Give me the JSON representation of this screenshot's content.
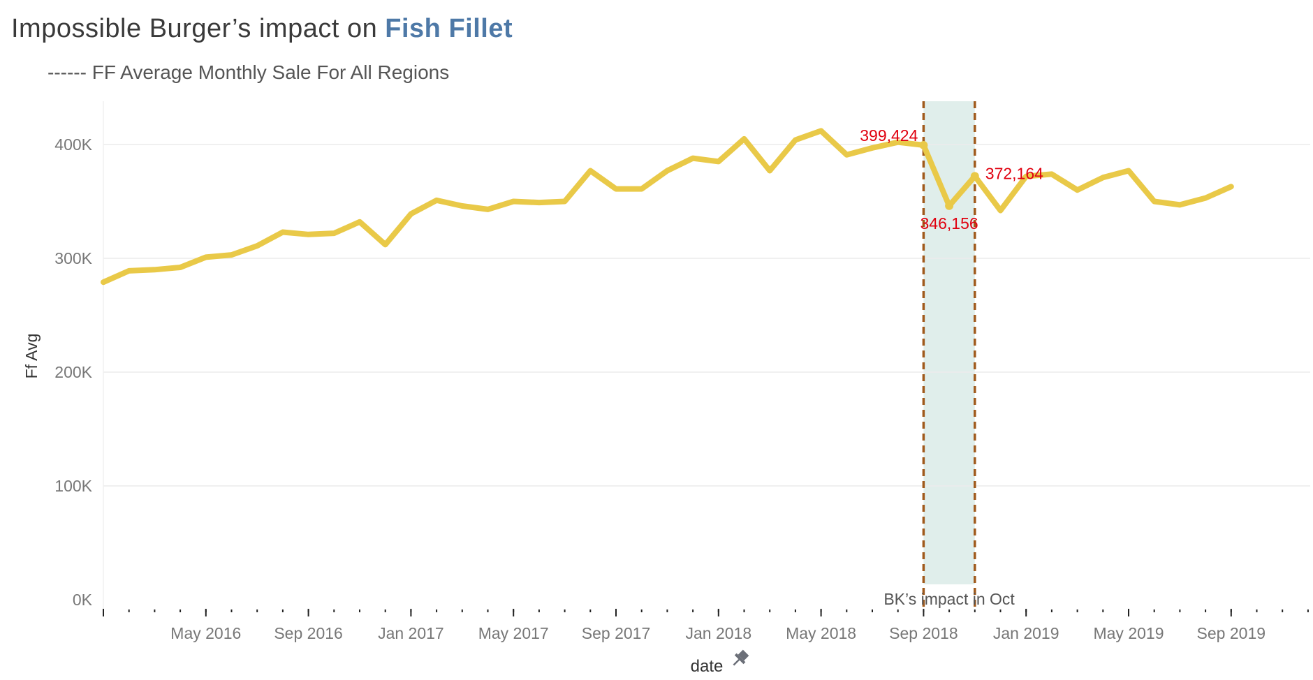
{
  "title": {
    "prefix": "Impossible Burger’s impact on ",
    "highlight": "Fish Fillet"
  },
  "subtitle": "------ FF Average Monthly Sale For All Regions",
  "colors": {
    "line": "#e9c948",
    "annotation": "#e0000f",
    "band": "#e0eeeb",
    "band_border": "#a05a1c",
    "axis_text": "#777777",
    "grid": "#ececec",
    "title_highlight": "#4e79a7"
  },
  "chart_data": {
    "type": "line",
    "title": "Impossible Burger’s impact on Fish Fillet",
    "subtitle": "------ FF Average Monthly Sale For All Regions",
    "xlabel": "date",
    "ylabel": "Ff Avg",
    "ylim": [
      0,
      430000
    ],
    "yticks": [
      0,
      100000,
      200000,
      300000,
      400000
    ],
    "ytick_labels": [
      "0K",
      "100K",
      "200K",
      "300K",
      "400K"
    ],
    "xtick_labels": [
      "May 2016",
      "Sep 2016",
      "Jan 2017",
      "May 2017",
      "Sep 2017",
      "Jan 2018",
      "May 2018",
      "Sep 2018",
      "Jan 2019",
      "May 2019",
      "Sep 2019"
    ],
    "xtick_dates": [
      "2016-05",
      "2016-09",
      "2017-01",
      "2017-05",
      "2017-09",
      "2018-01",
      "2018-05",
      "2018-09",
      "2019-01",
      "2019-05",
      "2019-09"
    ],
    "grid": true,
    "series": [
      {
        "x": [
          "2016-01",
          "2016-02",
          "2016-03",
          "2016-04",
          "2016-05",
          "2016-06",
          "2016-07",
          "2016-08",
          "2016-09",
          "2016-10",
          "2016-11",
          "2016-12",
          "2017-01",
          "2017-02",
          "2017-03",
          "2017-04",
          "2017-05",
          "2017-06",
          "2017-07",
          "2017-08",
          "2017-09",
          "2017-10",
          "2017-11",
          "2017-12",
          "2018-01",
          "2018-02",
          "2018-03",
          "2018-04",
          "2018-05",
          "2018-06",
          "2018-07",
          "2018-08",
          "2018-09",
          "2018-10",
          "2018-11",
          "2018-12",
          "2019-01",
          "2019-02",
          "2019-03",
          "2019-04",
          "2019-05",
          "2019-06",
          "2019-07",
          "2019-08",
          "2019-09"
        ],
        "values": [
          279000,
          289000,
          290000,
          292000,
          301000,
          303000,
          311000,
          323000,
          321000,
          322000,
          332000,
          312000,
          339000,
          351000,
          346000,
          343000,
          350000,
          349000,
          350000,
          377000,
          361000,
          361000,
          377000,
          388000,
          385000,
          405000,
          377000,
          404000,
          412000,
          391000,
          397000,
          402000,
          399424,
          346156,
          372164,
          342000,
          372000,
          374000,
          360000,
          371000,
          377000,
          350000,
          347000,
          353000,
          363000
        ]
      }
    ],
    "annotations": [
      {
        "x": "2018-09",
        "value": 399424,
        "label": "399,424"
      },
      {
        "x": "2018-10",
        "value": 346156,
        "label": "346,156"
      },
      {
        "x": "2018-11",
        "value": 372164,
        "label": "372,164"
      }
    ],
    "band": {
      "start": "2018-09",
      "end": "2018-11",
      "label": "BK’s impact in Oct"
    }
  }
}
